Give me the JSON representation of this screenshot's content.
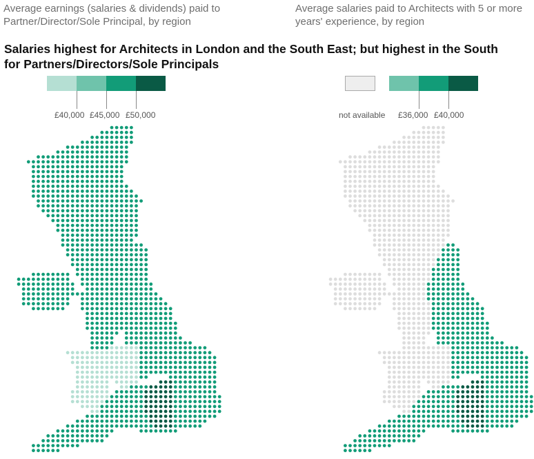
{
  "left_panel": {
    "subtitle": "Average earnings (salaries & dividends) paid to Partner/Director/Sole Principal, by region",
    "legend_labels": [
      "£40,000",
      "£45,000",
      "£50,000"
    ],
    "legend_colors": [
      "#b5dfd3",
      "#6fc3ab",
      "#129c78",
      "#0a5a45"
    ]
  },
  "right_panel": {
    "subtitle": "Average salaries paid to Architects with 5 or more years' experience, by region",
    "na_label": "not available",
    "legend_labels": [
      "£36,000",
      "£40,000"
    ],
    "legend_colors": [
      "#eeeeee",
      "#6fc3ab",
      "#129c78",
      "#0a5a45"
    ]
  },
  "headline": "Salaries highest for Architects in London and the South East; but highest in the South for Partners/Directors/Sole Principals",
  "regions": {
    "left": {
      "scotland": "#129c78",
      "northern_ireland": "#129c78",
      "north_east": "#129c78",
      "north_west": "#129c78",
      "yorkshire": "#129c78",
      "wales": "#b5dfd3",
      "west_midlands": "#b5dfd3",
      "east_midlands": "#129c78",
      "east_of_england": "#129c78",
      "london": "#0a5a45",
      "south_east": "#129c78",
      "south_west": "#129c78"
    },
    "right": {
      "scotland": "#dddddd",
      "northern_ireland": "#dddddd",
      "north_east": "#129c78",
      "north_west": "#dddddd",
      "yorkshire": "#129c78",
      "wales": "#dddddd",
      "west_midlands": "#dddddd",
      "east_midlands": "#129c78",
      "east_of_england": "#129c78",
      "london": "#0a5a45",
      "south_east": "#129c78",
      "south_west": "#129c78"
    }
  }
}
